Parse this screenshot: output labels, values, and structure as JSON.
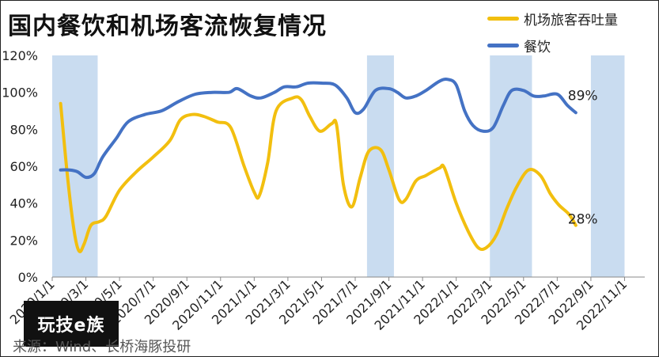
{
  "title": "国内餐饮和机场客流恢复情况",
  "legend": [
    {
      "label": "机场旅客吞吐量",
      "color": "#f2bf0f"
    },
    {
      "label": "餐饮",
      "color": "#4472c4"
    }
  ],
  "brand_badge": "玩技e族",
  "source": "来源：Wind、长桥海豚投研",
  "chart_data": {
    "type": "line",
    "title": "国内餐饮和机场客流恢复情况",
    "xlabel": "",
    "ylabel": "",
    "ylim": [
      0,
      120
    ],
    "y_ticks": [
      "0%",
      "20%",
      "40%",
      "60%",
      "80%",
      "100%",
      "120%"
    ],
    "x_ticks": [
      {
        "t": 0,
        "label": "2020/1/1"
      },
      {
        "t": 2,
        "label": "2020/3/1"
      },
      {
        "t": 4,
        "label": "2020/5/1"
      },
      {
        "t": 6,
        "label": "2020/7/1"
      },
      {
        "t": 8,
        "label": "2020/9/1"
      },
      {
        "t": 10,
        "label": "2020/11/1"
      },
      {
        "t": 12,
        "label": "2021/1/1"
      },
      {
        "t": 14,
        "label": "2021/3/1"
      },
      {
        "t": 16,
        "label": "2021/5/1"
      },
      {
        "t": 18,
        "label": "2021/7/1"
      },
      {
        "t": 20,
        "label": "2021/9/1"
      },
      {
        "t": 22,
        "label": "2021/11/1"
      },
      {
        "t": 24,
        "label": "2022/1/1"
      },
      {
        "t": 26,
        "label": "2022/3/1"
      },
      {
        "t": 28,
        "label": "2022/5/1"
      },
      {
        "t": 30,
        "label": "2022/7/1"
      },
      {
        "t": 32,
        "label": "2022/9/1"
      },
      {
        "t": 34,
        "label": "2022/11/1"
      }
    ],
    "shaded_periods": [
      {
        "start": 0,
        "end": 2.7
      },
      {
        "start": 18.7,
        "end": 20.3
      },
      {
        "start": 26,
        "end": 28.5
      },
      {
        "start": 32,
        "end": 34
      }
    ],
    "series": [
      {
        "name": "机场旅客吞吐量",
        "color": "#f2bf0f",
        "points": [
          [
            0.5,
            94
          ],
          [
            0.9,
            55
          ],
          [
            1.3,
            25
          ],
          [
            1.6,
            14
          ],
          [
            1.9,
            18
          ],
          [
            2.3,
            28
          ],
          [
            2.8,
            30
          ],
          [
            3.2,
            33
          ],
          [
            4.0,
            47
          ],
          [
            5.0,
            57
          ],
          [
            6.0,
            65
          ],
          [
            7.0,
            74
          ],
          [
            7.6,
            85
          ],
          [
            8.3,
            88
          ],
          [
            9.0,
            87
          ],
          [
            9.8,
            84
          ],
          [
            10.6,
            81
          ],
          [
            11.4,
            60
          ],
          [
            12.0,
            46
          ],
          [
            12.3,
            44
          ],
          [
            12.8,
            62
          ],
          [
            13.3,
            90
          ],
          [
            14.3,
            97
          ],
          [
            14.8,
            96
          ],
          [
            15.3,
            87
          ],
          [
            15.9,
            79
          ],
          [
            16.6,
            83
          ],
          [
            16.9,
            82
          ],
          [
            17.3,
            50
          ],
          [
            17.8,
            38
          ],
          [
            18.3,
            54
          ],
          [
            18.8,
            68
          ],
          [
            19.5,
            69
          ],
          [
            20.0,
            58
          ],
          [
            20.6,
            42
          ],
          [
            21.0,
            42
          ],
          [
            21.6,
            52
          ],
          [
            22.2,
            55
          ],
          [
            23.0,
            59
          ],
          [
            23.3,
            59
          ],
          [
            24.0,
            40
          ],
          [
            24.7,
            25
          ],
          [
            25.3,
            16
          ],
          [
            25.8,
            16
          ],
          [
            26.4,
            23
          ],
          [
            27.0,
            37
          ],
          [
            27.6,
            49
          ],
          [
            28.3,
            58
          ],
          [
            29.0,
            55
          ],
          [
            29.6,
            45
          ],
          [
            30.1,
            39
          ],
          [
            30.7,
            34
          ],
          [
            31.1,
            28
          ]
        ],
        "end_label": "28%"
      },
      {
        "name": "餐饮",
        "color": "#4472c4",
        "points": [
          [
            0.5,
            58
          ],
          [
            1.0,
            58
          ],
          [
            1.5,
            57
          ],
          [
            2.0,
            54
          ],
          [
            2.5,
            56
          ],
          [
            3.0,
            65
          ],
          [
            3.8,
            75
          ],
          [
            4.5,
            84
          ],
          [
            5.5,
            88
          ],
          [
            6.5,
            90
          ],
          [
            7.5,
            95
          ],
          [
            8.5,
            99
          ],
          [
            9.5,
            100
          ],
          [
            10.5,
            100
          ],
          [
            11.0,
            102
          ],
          [
            11.8,
            98
          ],
          [
            12.4,
            97
          ],
          [
            13.2,
            100
          ],
          [
            13.8,
            103
          ],
          [
            14.5,
            103
          ],
          [
            15.2,
            105
          ],
          [
            16.0,
            105
          ],
          [
            16.8,
            104
          ],
          [
            17.5,
            97
          ],
          [
            18.0,
            89
          ],
          [
            18.5,
            91
          ],
          [
            19.2,
            101
          ],
          [
            20.0,
            102
          ],
          [
            20.5,
            100
          ],
          [
            21.0,
            97
          ],
          [
            21.6,
            98
          ],
          [
            22.2,
            101
          ],
          [
            23.0,
            106
          ],
          [
            23.5,
            107
          ],
          [
            24.0,
            104
          ],
          [
            24.5,
            90
          ],
          [
            25.0,
            82
          ],
          [
            25.6,
            79
          ],
          [
            26.2,
            81
          ],
          [
            26.8,
            93
          ],
          [
            27.3,
            101
          ],
          [
            28.0,
            101
          ],
          [
            28.6,
            98
          ],
          [
            29.2,
            98
          ],
          [
            30.0,
            99
          ],
          [
            30.6,
            93
          ],
          [
            31.1,
            89
          ]
        ],
        "end_label": "89%"
      }
    ]
  }
}
